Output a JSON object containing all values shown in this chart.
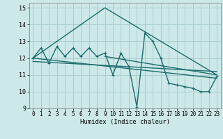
{
  "xlabel": "Humidex (Indice chaleur)",
  "bg_color": "#cce8e8",
  "grid_color": "#aacccc",
  "line_color": "#1a6b6b",
  "xlim": [
    -0.5,
    23.5
  ],
  "ylim": [
    9,
    15.3
  ],
  "yticks": [
    9,
    10,
    11,
    12,
    13,
    14,
    15
  ],
  "xticks": [
    0,
    1,
    2,
    3,
    4,
    5,
    6,
    7,
    8,
    9,
    10,
    11,
    12,
    13,
    14,
    15,
    16,
    17,
    18,
    19,
    20,
    21,
    22,
    23
  ],
  "main_x": [
    0,
    1,
    2,
    3,
    4,
    5,
    6,
    7,
    8,
    9,
    10,
    11,
    12,
    13,
    14,
    15,
    16,
    17,
    18,
    19,
    20,
    21,
    22,
    23
  ],
  "main_y": [
    12.0,
    12.6,
    11.7,
    12.7,
    12.1,
    12.6,
    12.1,
    12.6,
    12.1,
    12.3,
    11.0,
    12.3,
    11.5,
    9.1,
    13.5,
    13.0,
    12.0,
    10.5,
    10.4,
    10.3,
    10.2,
    10.0,
    10.0,
    10.9
  ],
  "upper_line_x": [
    0,
    9,
    23
  ],
  "upper_line_y": [
    12.0,
    15.0,
    11.0
  ],
  "lower_line1_x": [
    0,
    23
  ],
  "lower_line1_y": [
    12.0,
    10.8
  ],
  "lower_line2_x": [
    0,
    23
  ],
  "lower_line2_y": [
    11.8,
    11.2
  ],
  "lower_line3_x": [
    9,
    23
  ],
  "lower_line3_y": [
    12.1,
    11.0
  ],
  "marker": "+",
  "marker_size": 3,
  "line_width": 1.0
}
